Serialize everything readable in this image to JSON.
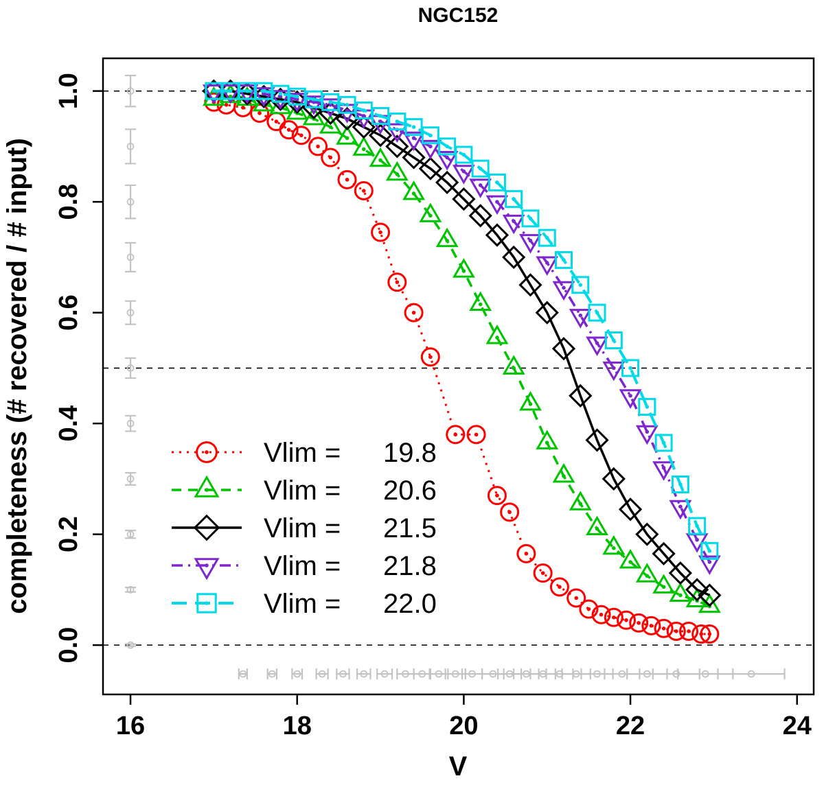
{
  "chart_data": {
    "type": "line",
    "title": "NGC152",
    "xlabel": "V",
    "ylabel": "completeness (# recovered / # input)",
    "xlim": [
      15.67,
      24.2
    ],
    "ylim": [
      -0.089,
      1.059
    ],
    "xticks": [
      "16",
      "18",
      "20",
      "22",
      "24"
    ],
    "xtick_values": [
      16,
      18,
      20,
      22,
      24
    ],
    "ytick_labels": [
      "0.0",
      "0.2",
      "0.4",
      "0.6",
      "0.8",
      "1.0"
    ],
    "ytick_values": [
      0.0,
      0.2,
      0.4,
      0.6,
      0.8,
      1.0
    ],
    "grid": false,
    "reference_lines_y": [
      0.0,
      0.5,
      1.0
    ],
    "legend_position": "lower-left-inside",
    "legend": {
      "label_prefix": "Vlim ="
    },
    "colors": {
      "red": "#ff0000",
      "green": "#00c400",
      "black": "#000000",
      "purple": "#7d26cd",
      "cyan": "#00d9e8",
      "gray": "#c3c3c3"
    },
    "series": [
      {
        "name": "Vlim = 19.8",
        "vlim": "19.8",
        "color": "#ff0000",
        "linestyle": "dotted",
        "marker": "circle-dot",
        "points": [
          [
            17.0,
            0.98
          ],
          [
            17.15,
            0.975
          ],
          [
            17.35,
            0.97
          ],
          [
            17.55,
            0.96
          ],
          [
            17.75,
            0.945
          ],
          [
            17.9,
            0.93
          ],
          [
            18.05,
            0.92
          ],
          [
            18.25,
            0.9
          ],
          [
            18.4,
            0.88
          ],
          [
            18.6,
            0.84
          ],
          [
            18.8,
            0.82
          ],
          [
            19.0,
            0.745
          ],
          [
            19.2,
            0.655
          ],
          [
            19.4,
            0.6
          ],
          [
            19.6,
            0.52
          ],
          [
            19.9,
            0.38
          ],
          [
            20.15,
            0.38
          ],
          [
            20.4,
            0.27
          ],
          [
            20.55,
            0.24
          ],
          [
            20.75,
            0.165
          ],
          [
            20.95,
            0.13
          ],
          [
            21.15,
            0.105
          ],
          [
            21.35,
            0.085
          ],
          [
            21.5,
            0.065
          ],
          [
            21.65,
            0.055
          ],
          [
            21.8,
            0.05
          ],
          [
            21.95,
            0.045
          ],
          [
            22.1,
            0.04
          ],
          [
            22.25,
            0.035
          ],
          [
            22.4,
            0.03
          ],
          [
            22.55,
            0.025
          ],
          [
            22.7,
            0.025
          ],
          [
            22.85,
            0.02
          ],
          [
            22.95,
            0.02
          ]
        ]
      },
      {
        "name": "Vlim = 20.6",
        "vlim": "20.6",
        "color": "#00c400",
        "linestyle": "dashed",
        "marker": "triangle-up-dot",
        "points": [
          [
            17.0,
            0.985
          ],
          [
            17.2,
            0.99
          ],
          [
            17.4,
            0.985
          ],
          [
            17.6,
            0.975
          ],
          [
            17.8,
            0.97
          ],
          [
            18.0,
            0.96
          ],
          [
            18.2,
            0.95
          ],
          [
            18.4,
            0.935
          ],
          [
            18.6,
            0.915
          ],
          [
            18.8,
            0.895
          ],
          [
            19.0,
            0.875
          ],
          [
            19.2,
            0.85
          ],
          [
            19.4,
            0.815
          ],
          [
            19.6,
            0.775
          ],
          [
            19.8,
            0.73
          ],
          [
            20.0,
            0.675
          ],
          [
            20.2,
            0.615
          ],
          [
            20.4,
            0.555
          ],
          [
            20.6,
            0.5
          ],
          [
            20.8,
            0.435
          ],
          [
            21.0,
            0.365
          ],
          [
            21.2,
            0.305
          ],
          [
            21.4,
            0.255
          ],
          [
            21.6,
            0.21
          ],
          [
            21.8,
            0.175
          ],
          [
            22.0,
            0.15
          ],
          [
            22.2,
            0.125
          ],
          [
            22.4,
            0.105
          ],
          [
            22.6,
            0.09
          ],
          [
            22.8,
            0.08
          ],
          [
            22.95,
            0.07
          ]
        ]
      },
      {
        "name": "Vlim = 21.5",
        "vlim": "21.5",
        "color": "#000000",
        "linestyle": "solid",
        "marker": "diamond",
        "points": [
          [
            17.0,
            1.0
          ],
          [
            17.2,
            1.0
          ],
          [
            17.4,
            0.995
          ],
          [
            17.6,
            0.99
          ],
          [
            17.8,
            0.985
          ],
          [
            18.0,
            0.98
          ],
          [
            18.2,
            0.97
          ],
          [
            18.4,
            0.96
          ],
          [
            18.6,
            0.95
          ],
          [
            18.8,
            0.935
          ],
          [
            19.0,
            0.92
          ],
          [
            19.2,
            0.9
          ],
          [
            19.4,
            0.88
          ],
          [
            19.6,
            0.86
          ],
          [
            19.8,
            0.835
          ],
          [
            20.0,
            0.805
          ],
          [
            20.2,
            0.775
          ],
          [
            20.4,
            0.74
          ],
          [
            20.6,
            0.7
          ],
          [
            20.8,
            0.65
          ],
          [
            21.0,
            0.6
          ],
          [
            21.2,
            0.535
          ],
          [
            21.4,
            0.45
          ],
          [
            21.6,
            0.37
          ],
          [
            21.8,
            0.3
          ],
          [
            22.0,
            0.245
          ],
          [
            22.2,
            0.2
          ],
          [
            22.4,
            0.165
          ],
          [
            22.6,
            0.13
          ],
          [
            22.8,
            0.1
          ],
          [
            22.95,
            0.09
          ]
        ]
      },
      {
        "name": "Vlim = 21.8",
        "vlim": "21.8",
        "color": "#7d26cd",
        "linestyle": "dashdot",
        "marker": "triangle-down-dot",
        "points": [
          [
            17.0,
            1.0
          ],
          [
            17.2,
            1.0
          ],
          [
            17.4,
            1.0
          ],
          [
            17.6,
            0.995
          ],
          [
            17.8,
            0.99
          ],
          [
            18.0,
            0.985
          ],
          [
            18.2,
            0.98
          ],
          [
            18.4,
            0.975
          ],
          [
            18.6,
            0.965
          ],
          [
            18.8,
            0.955
          ],
          [
            19.0,
            0.945
          ],
          [
            19.2,
            0.93
          ],
          [
            19.4,
            0.915
          ],
          [
            19.6,
            0.9
          ],
          [
            19.8,
            0.88
          ],
          [
            20.0,
            0.855
          ],
          [
            20.2,
            0.83
          ],
          [
            20.4,
            0.8
          ],
          [
            20.6,
            0.765
          ],
          [
            20.8,
            0.73
          ],
          [
            21.0,
            0.69
          ],
          [
            21.2,
            0.645
          ],
          [
            21.4,
            0.595
          ],
          [
            21.6,
            0.545
          ],
          [
            21.8,
            0.5
          ],
          [
            22.0,
            0.45
          ],
          [
            22.2,
            0.385
          ],
          [
            22.4,
            0.32
          ],
          [
            22.6,
            0.25
          ],
          [
            22.8,
            0.19
          ],
          [
            22.95,
            0.15
          ]
        ]
      },
      {
        "name": "Vlim = 22.0",
        "vlim": "22.0",
        "color": "#00d9e8",
        "linestyle": "longdash",
        "marker": "square-dot",
        "points": [
          [
            17.0,
            1.0
          ],
          [
            17.2,
            1.0
          ],
          [
            17.4,
            1.0
          ],
          [
            17.6,
            1.0
          ],
          [
            17.8,
            0.995
          ],
          [
            18.0,
            0.99
          ],
          [
            18.2,
            0.985
          ],
          [
            18.4,
            0.98
          ],
          [
            18.6,
            0.975
          ],
          [
            18.8,
            0.965
          ],
          [
            19.0,
            0.955
          ],
          [
            19.2,
            0.945
          ],
          [
            19.4,
            0.935
          ],
          [
            19.6,
            0.92
          ],
          [
            19.8,
            0.9
          ],
          [
            20.0,
            0.885
          ],
          [
            20.2,
            0.86
          ],
          [
            20.4,
            0.835
          ],
          [
            20.6,
            0.805
          ],
          [
            20.8,
            0.77
          ],
          [
            21.0,
            0.735
          ],
          [
            21.2,
            0.695
          ],
          [
            21.4,
            0.65
          ],
          [
            21.6,
            0.6
          ],
          [
            21.8,
            0.55
          ],
          [
            22.0,
            0.5
          ],
          [
            22.2,
            0.43
          ],
          [
            22.4,
            0.365
          ],
          [
            22.6,
            0.29
          ],
          [
            22.8,
            0.215
          ],
          [
            22.95,
            0.17
          ]
        ]
      }
    ],
    "left_error_bars": {
      "x": 16.0,
      "color": "#c3c3c3",
      "points": [
        {
          "y": 0.0,
          "err": 0.002
        },
        {
          "y": 0.1,
          "err": 0.004
        },
        {
          "y": 0.2,
          "err": 0.007
        },
        {
          "y": 0.3,
          "err": 0.011
        },
        {
          "y": 0.4,
          "err": 0.014
        },
        {
          "y": 0.5,
          "err": 0.018
        },
        {
          "y": 0.6,
          "err": 0.021
        },
        {
          "y": 0.7,
          "err": 0.026
        },
        {
          "y": 0.8,
          "err": 0.03
        },
        {
          "y": 0.9,
          "err": 0.031
        },
        {
          "y": 1.0,
          "err": 0.028
        }
      ]
    },
    "bottom_error_bars": {
      "y": -0.052,
      "color": "#c3c3c3",
      "points": [
        {
          "x": 17.35,
          "err": 0.05
        },
        {
          "x": 17.7,
          "err": 0.055
        },
        {
          "x": 18.0,
          "err": 0.06
        },
        {
          "x": 18.3,
          "err": 0.07
        },
        {
          "x": 18.55,
          "err": 0.075
        },
        {
          "x": 18.8,
          "err": 0.08
        },
        {
          "x": 19.05,
          "err": 0.09
        },
        {
          "x": 19.3,
          "err": 0.1
        },
        {
          "x": 19.5,
          "err": 0.1
        },
        {
          "x": 19.7,
          "err": 0.11
        },
        {
          "x": 19.9,
          "err": 0.12
        },
        {
          "x": 20.1,
          "err": 0.12
        },
        {
          "x": 20.35,
          "err": 0.13
        },
        {
          "x": 20.55,
          "err": 0.14
        },
        {
          "x": 20.75,
          "err": 0.15
        },
        {
          "x": 20.95,
          "err": 0.15
        },
        {
          "x": 21.15,
          "err": 0.16
        },
        {
          "x": 21.35,
          "err": 0.17
        },
        {
          "x": 21.6,
          "err": 0.19
        },
        {
          "x": 21.9,
          "err": 0.21
        },
        {
          "x": 22.2,
          "err": 0.24
        },
        {
          "x": 22.55,
          "err": 0.28
        },
        {
          "x": 22.9,
          "err": 0.33
        },
        {
          "x": 23.45,
          "err": 0.4
        }
      ]
    }
  }
}
